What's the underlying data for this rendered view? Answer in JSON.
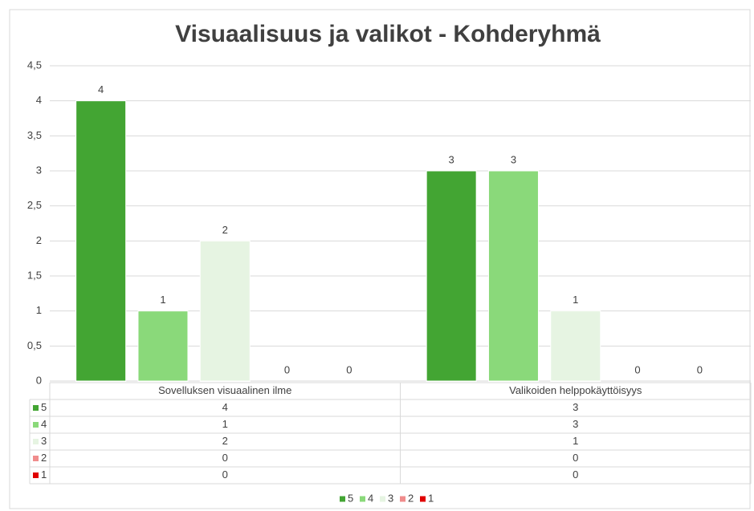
{
  "chart_data": {
    "type": "bar",
    "title": "Visuaalisuus ja valikot - Kohderyhmä",
    "categories": [
      "Sovelluksen visuaalinen ilme",
      "Valikoiden helppokäyttöisyys"
    ],
    "series": [
      {
        "name": "5",
        "color": "#43a533",
        "values": [
          4,
          3
        ]
      },
      {
        "name": "4",
        "color": "#8ad97a",
        "values": [
          1,
          3
        ]
      },
      {
        "name": "3",
        "color": "#e6f4e2",
        "values": [
          2,
          1
        ]
      },
      {
        "name": "2",
        "color": "#f08c8c",
        "values": [
          0,
          0
        ]
      },
      {
        "name": "1",
        "color": "#e00000",
        "values": [
          0,
          0
        ]
      }
    ],
    "ylim": [
      0,
      4.5
    ],
    "yticks": [
      0,
      {
        "value": 0.5,
        "label": "0,5"
      },
      1,
      {
        "value": 1.5,
        "label": "1,5"
      },
      2,
      {
        "value": 2.5,
        "label": "2,5"
      },
      3,
      {
        "value": 3.5,
        "label": "3,5"
      },
      4,
      {
        "value": 4.5,
        "label": "4,5"
      }
    ],
    "grid": true,
    "legend": "bottom"
  }
}
